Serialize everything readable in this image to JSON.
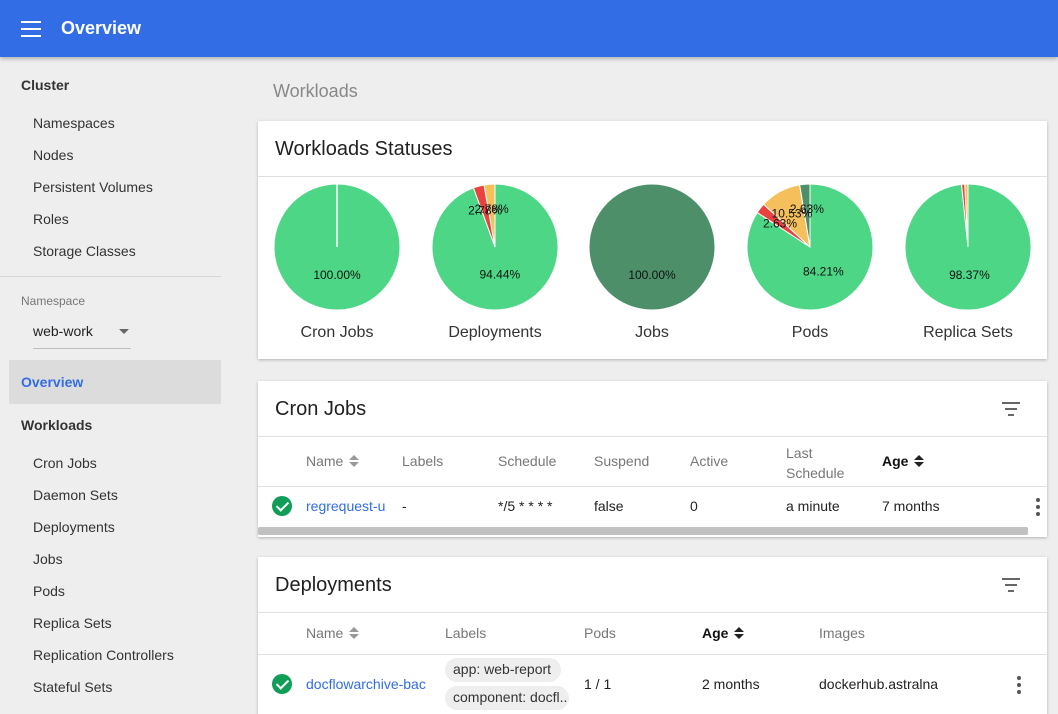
{
  "header": {
    "title": "Overview"
  },
  "sidebar": {
    "cluster_heading": "Cluster",
    "cluster_items": [
      "Namespaces",
      "Nodes",
      "Persistent Volumes",
      "Roles",
      "Storage Classes"
    ],
    "namespace_label": "Namespace",
    "namespace_value": "web-work",
    "overview": "Overview",
    "workloads_heading": "Workloads",
    "workload_items": [
      "Cron Jobs",
      "Daemon Sets",
      "Deployments",
      "Jobs",
      "Pods",
      "Replica Sets",
      "Replication Controllers",
      "Stateful Sets"
    ]
  },
  "breadcrumb": "Workloads",
  "statuses": {
    "title": "Workloads Statuses",
    "colors": {
      "running": "#4cd685",
      "succeeded": "#4c8f69",
      "failed": "#e8433f",
      "pending": "#f5c05b"
    },
    "charts": [
      {
        "caption": "Cron Jobs",
        "slices": [
          {
            "status": "running",
            "pct": 100.0,
            "label": "100.00%"
          }
        ]
      },
      {
        "caption": "Deployments",
        "slices": [
          {
            "status": "running",
            "pct": 94.44,
            "label": "94.44%"
          },
          {
            "status": "failed",
            "pct": 2.78,
            "label": "2.78%"
          },
          {
            "status": "pending",
            "pct": 2.78,
            "label": "2.78%"
          }
        ]
      },
      {
        "caption": "Jobs",
        "slices": [
          {
            "status": "succeeded",
            "pct": 100.0,
            "label": "100.00%"
          }
        ]
      },
      {
        "caption": "Pods",
        "slices": [
          {
            "status": "running",
            "pct": 84.21,
            "label": "84.21%"
          },
          {
            "status": "failed",
            "pct": 2.63,
            "label": "2.63%"
          },
          {
            "status": "pending",
            "pct": 10.53,
            "label": "10.53%"
          },
          {
            "status": "succeeded",
            "pct": 2.63,
            "label": "2.63%"
          }
        ]
      },
      {
        "caption": "Replica Sets",
        "slices": [
          {
            "status": "running",
            "pct": 98.37,
            "label": "98.37%"
          },
          {
            "status": "failed",
            "pct": 0.81,
            "label": ""
          },
          {
            "status": "pending",
            "pct": 0.82,
            "label": ""
          }
        ]
      }
    ]
  },
  "cronjobs": {
    "title": "Cron Jobs",
    "headers": {
      "name": "Name",
      "labels": "Labels",
      "schedule": "Schedule",
      "suspend": "Suspend",
      "active": "Active",
      "last_schedule": "Last\nSchedule",
      "age": "Age"
    },
    "rows": [
      {
        "name": "regrequest-u",
        "labels": "-",
        "schedule": "*/5 * * * *",
        "suspend": "false",
        "active": "0",
        "last_schedule": "a minute",
        "age": "7 months"
      }
    ]
  },
  "deployments": {
    "title": "Deployments",
    "headers": {
      "name": "Name",
      "labels": "Labels",
      "pods": "Pods",
      "age": "Age",
      "images": "Images"
    },
    "rows": [
      {
        "name": "docflowarchive-bac",
        "labels": [
          "app: web-report",
          "component: docfl..."
        ],
        "pods": "1 / 1",
        "age": "2 months",
        "images": "dockerhub.astralna"
      }
    ]
  }
}
